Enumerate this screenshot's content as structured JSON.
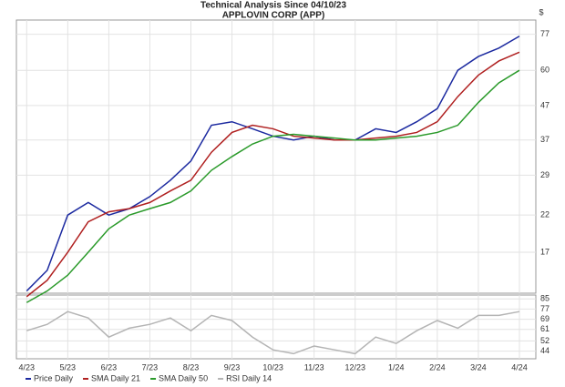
{
  "chart_data": {
    "type": "line",
    "title": "Technical Analysis Since 04/10/23",
    "subtitle": "APPLOVIN CORP (APP)",
    "y_label": "$",
    "x": [
      0,
      0.5,
      1,
      1.5,
      2,
      2.5,
      3,
      3.5,
      4,
      4.5,
      5,
      5.5,
      6,
      6.5,
      7,
      7.5,
      8,
      8.5,
      9,
      9.5,
      10,
      10.5,
      11,
      11.5,
      12
    ],
    "xlim": [
      -0.25,
      12.4
    ],
    "xticks": [
      {
        "value": 0,
        "label": "4/23"
      },
      {
        "value": 1,
        "label": "5/23"
      },
      {
        "value": 2,
        "label": "6/23"
      },
      {
        "value": 3,
        "label": "7/23"
      },
      {
        "value": 4,
        "label": "8/23"
      },
      {
        "value": 5,
        "label": "9/23"
      },
      {
        "value": 6,
        "label": "10/23"
      },
      {
        "value": 7,
        "label": "11/23"
      },
      {
        "value": 8,
        "label": "12/23"
      },
      {
        "value": 9,
        "label": "1/24"
      },
      {
        "value": 10,
        "label": "2/24"
      },
      {
        "value": 11,
        "label": "3/24"
      },
      {
        "value": 12,
        "label": "4/24"
      }
    ],
    "ylim": [
      12.8,
      85
    ],
    "yscale": "log",
    "yticks": [
      17,
      22,
      29,
      37,
      47,
      60,
      77
    ],
    "y2lim": [
      38,
      88
    ],
    "y2ticks": [
      44,
      52,
      61,
      69,
      77,
      85
    ],
    "grid": true,
    "legend": "bottom-left",
    "series": [
      {
        "name": "Price Daily",
        "color": "#1c2aa0",
        "values": [
          13,
          15,
          22,
          24,
          22,
          23,
          25,
          28,
          32,
          41,
          42,
          40,
          38,
          37,
          38,
          37,
          37,
          40,
          39,
          42,
          46,
          60,
          66,
          70,
          76
        ]
      },
      {
        "name": "SMA Daily 21",
        "color": "#b02020",
        "values": [
          12.5,
          14,
          17,
          21,
          22.5,
          23,
          24,
          26,
          28,
          34,
          39,
          41,
          40,
          38,
          37.5,
          37,
          37,
          37.5,
          38,
          39,
          42,
          50,
          58,
          64,
          68
        ]
      },
      {
        "name": "SMA Daily 50",
        "color": "#2a9a2a",
        "values": [
          12,
          13,
          14.5,
          17,
          20,
          22,
          23,
          24,
          26,
          30,
          33,
          36,
          38,
          38.5,
          38,
          37.5,
          37,
          37,
          37.5,
          38,
          39,
          41,
          48,
          55,
          60
        ]
      },
      {
        "name": "RSI Daily 14",
        "color": "#b4b4b4",
        "axis": "y2",
        "values": [
          60,
          65,
          75,
          70,
          55,
          62,
          65,
          70,
          60,
          72,
          68,
          55,
          45,
          42,
          48,
          45,
          42,
          55,
          50,
          60,
          68,
          62,
          72,
          72,
          75
        ]
      }
    ]
  }
}
